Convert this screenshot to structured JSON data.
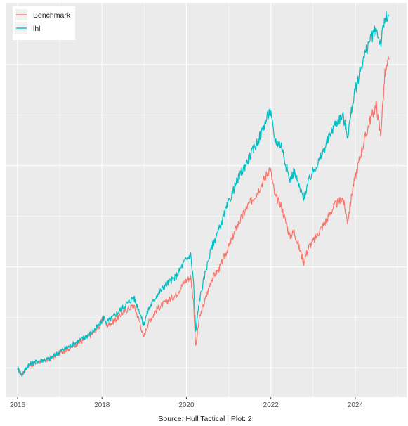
{
  "chart_data": {
    "type": "line",
    "caption": "Source: Hull Tactical | Plot: 2",
    "x_ticks": [
      "2016",
      "2018",
      "2020",
      "2022",
      "2024"
    ],
    "xlim": [
      2016.0,
      2024.9
    ],
    "ylim": [
      0.85,
      4.5
    ],
    "grid": true,
    "legend_position": "top-left",
    "series": [
      {
        "name": "Benchmark",
        "color": "#F8766D",
        "points": [
          [
            2016.0,
            1.0
          ],
          [
            2016.1,
            0.93
          ],
          [
            2016.25,
            1.02
          ],
          [
            2016.5,
            1.06
          ],
          [
            2016.75,
            1.08
          ],
          [
            2017.0,
            1.15
          ],
          [
            2017.25,
            1.2
          ],
          [
            2017.5,
            1.26
          ],
          [
            2017.75,
            1.33
          ],
          [
            2017.95,
            1.42
          ],
          [
            2018.05,
            1.52
          ],
          [
            2018.1,
            1.42
          ],
          [
            2018.25,
            1.45
          ],
          [
            2018.5,
            1.55
          ],
          [
            2018.75,
            1.62
          ],
          [
            2018.9,
            1.45
          ],
          [
            2018.98,
            1.3
          ],
          [
            2019.1,
            1.45
          ],
          [
            2019.3,
            1.58
          ],
          [
            2019.5,
            1.65
          ],
          [
            2019.75,
            1.72
          ],
          [
            2019.95,
            1.85
          ],
          [
            2020.1,
            1.9
          ],
          [
            2020.17,
            1.65
          ],
          [
            2020.22,
            1.2
          ],
          [
            2020.3,
            1.48
          ],
          [
            2020.45,
            1.68
          ],
          [
            2020.6,
            1.88
          ],
          [
            2020.8,
            2.0
          ],
          [
            2020.95,
            2.15
          ],
          [
            2021.2,
            2.4
          ],
          [
            2021.45,
            2.6
          ],
          [
            2021.7,
            2.75
          ],
          [
            2021.98,
            2.98
          ],
          [
            2022.1,
            2.7
          ],
          [
            2022.25,
            2.6
          ],
          [
            2022.45,
            2.3
          ],
          [
            2022.55,
            2.35
          ],
          [
            2022.7,
            2.15
          ],
          [
            2022.78,
            2.05
          ],
          [
            2022.9,
            2.2
          ],
          [
            2023.0,
            2.25
          ],
          [
            2023.15,
            2.35
          ],
          [
            2023.3,
            2.45
          ],
          [
            2023.5,
            2.6
          ],
          [
            2023.7,
            2.68
          ],
          [
            2023.82,
            2.45
          ],
          [
            2023.95,
            2.8
          ],
          [
            2024.15,
            3.15
          ],
          [
            2024.35,
            3.45
          ],
          [
            2024.5,
            3.6
          ],
          [
            2024.6,
            3.3
          ],
          [
            2024.7,
            3.9
          ],
          [
            2024.8,
            4.05
          ]
        ]
      },
      {
        "name": "lhl",
        "color": "#00BFC4",
        "points": [
          [
            2016.0,
            1.0
          ],
          [
            2016.1,
            0.93
          ],
          [
            2016.25,
            1.03
          ],
          [
            2016.5,
            1.07
          ],
          [
            2016.75,
            1.09
          ],
          [
            2017.0,
            1.16
          ],
          [
            2017.25,
            1.22
          ],
          [
            2017.5,
            1.28
          ],
          [
            2017.75,
            1.35
          ],
          [
            2017.95,
            1.43
          ],
          [
            2018.05,
            1.5
          ],
          [
            2018.1,
            1.45
          ],
          [
            2018.25,
            1.5
          ],
          [
            2018.5,
            1.6
          ],
          [
            2018.75,
            1.7
          ],
          [
            2018.9,
            1.55
          ],
          [
            2018.98,
            1.42
          ],
          [
            2019.1,
            1.58
          ],
          [
            2019.3,
            1.72
          ],
          [
            2019.5,
            1.82
          ],
          [
            2019.75,
            1.9
          ],
          [
            2019.95,
            2.05
          ],
          [
            2020.1,
            2.12
          ],
          [
            2020.17,
            1.85
          ],
          [
            2020.22,
            1.35
          ],
          [
            2020.3,
            1.65
          ],
          [
            2020.45,
            1.95
          ],
          [
            2020.6,
            2.2
          ],
          [
            2020.8,
            2.4
          ],
          [
            2020.95,
            2.58
          ],
          [
            2021.2,
            2.85
          ],
          [
            2021.45,
            3.05
          ],
          [
            2021.7,
            3.25
          ],
          [
            2021.98,
            3.55
          ],
          [
            2022.1,
            3.25
          ],
          [
            2022.25,
            3.2
          ],
          [
            2022.45,
            2.85
          ],
          [
            2022.55,
            2.95
          ],
          [
            2022.7,
            2.75
          ],
          [
            2022.78,
            2.68
          ],
          [
            2022.9,
            2.85
          ],
          [
            2023.0,
            2.95
          ],
          [
            2023.15,
            3.05
          ],
          [
            2023.3,
            3.2
          ],
          [
            2023.5,
            3.4
          ],
          [
            2023.7,
            3.5
          ],
          [
            2023.82,
            3.3
          ],
          [
            2023.95,
            3.65
          ],
          [
            2024.15,
            4.0
          ],
          [
            2024.35,
            4.25
          ],
          [
            2024.5,
            4.35
          ],
          [
            2024.6,
            4.2
          ],
          [
            2024.7,
            4.45
          ],
          [
            2024.8,
            4.48
          ]
        ]
      }
    ]
  }
}
